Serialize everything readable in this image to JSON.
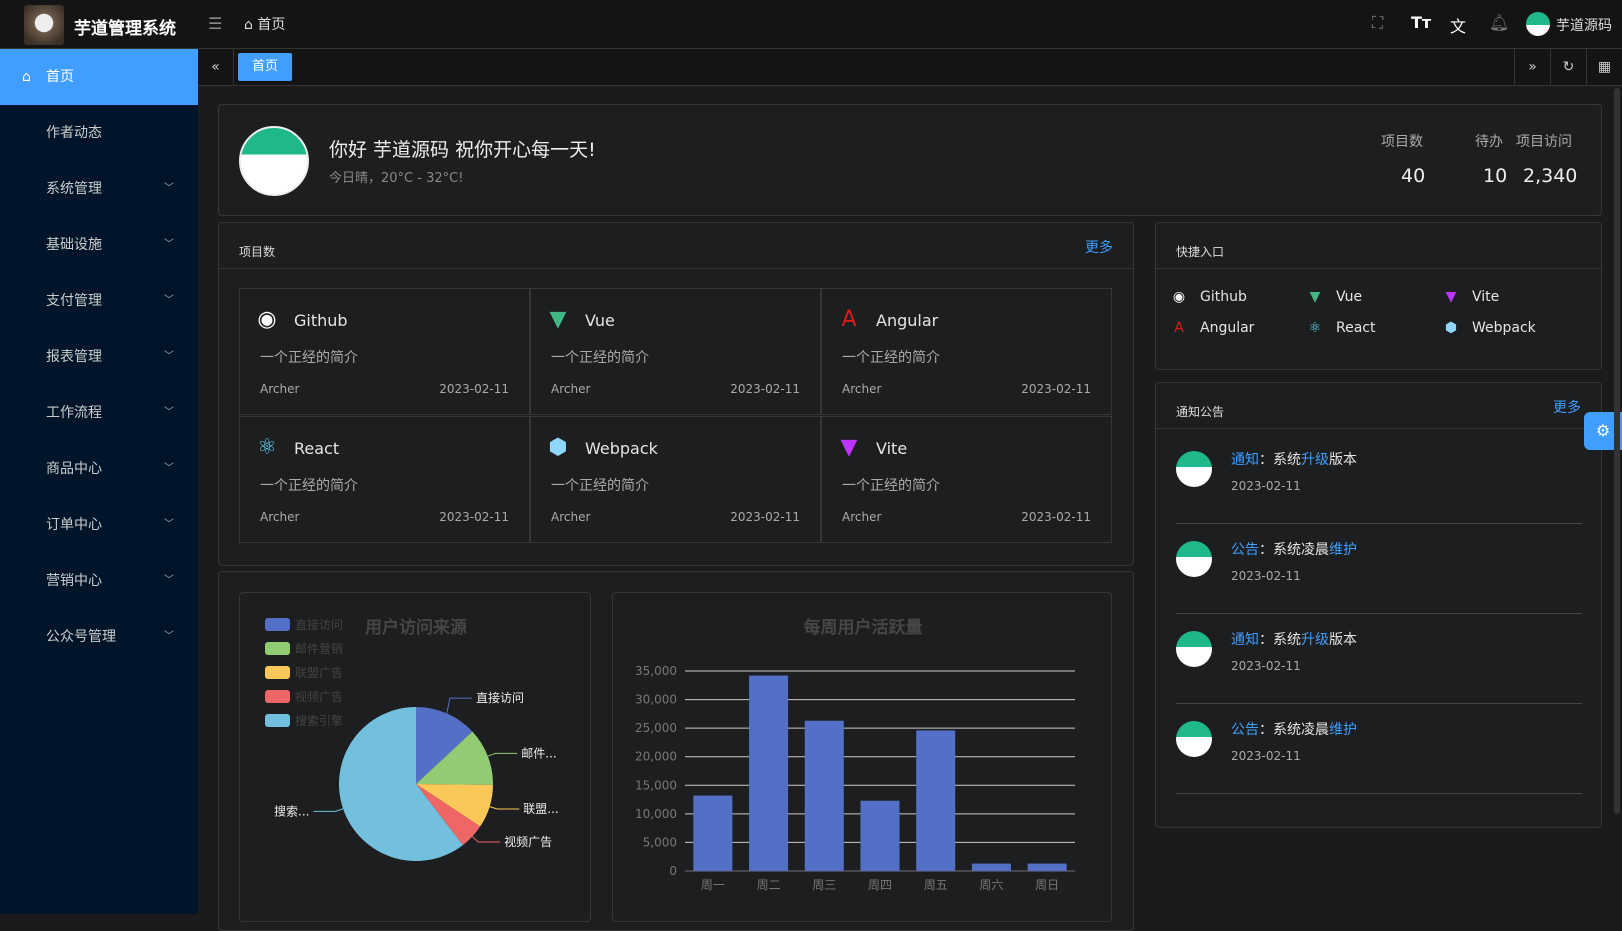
{
  "header": {
    "app_title": "芋道管理系统",
    "breadcrumb": "首页",
    "username": "芋道源码",
    "icons": [
      "fullscreen-icon",
      "font-size-icon",
      "translate-icon",
      "bell-icon"
    ]
  },
  "sidebar": {
    "items": [
      {
        "label": "首页",
        "active": true
      },
      {
        "label": "作者动态"
      },
      {
        "label": "系统管理"
      },
      {
        "label": "基础设施"
      },
      {
        "label": "支付管理"
      },
      {
        "label": "报表管理"
      },
      {
        "label": "工作流程"
      },
      {
        "label": "商品中心"
      },
      {
        "label": "订单中心"
      },
      {
        "label": "营销中心"
      },
      {
        "label": "公众号管理"
      }
    ]
  },
  "tabs": [
    {
      "label": "首页",
      "active": true
    }
  ],
  "welcome": {
    "greeting": "你好 芋道源码 祝你开心每一天!",
    "weather": "今日晴，20°C - 32°C!",
    "stats": [
      {
        "label": "项目数",
        "value": "40"
      },
      {
        "label": "待办",
        "value": "10"
      },
      {
        "label": "项目访问",
        "value": "2,340"
      }
    ]
  },
  "projects": {
    "title": "项目数",
    "more": "更多",
    "items": [
      {
        "name": "Github",
        "icon": "github-icon",
        "desc": "一个正经的简介",
        "author": "Archer",
        "date": "2023-02-11"
      },
      {
        "name": "Vue",
        "icon": "vue-icon",
        "desc": "一个正经的简介",
        "author": "Archer",
        "date": "2023-02-11"
      },
      {
        "name": "Angular",
        "icon": "angular-icon",
        "desc": "一个正经的简介",
        "author": "Archer",
        "date": "2023-02-11"
      },
      {
        "name": "React",
        "icon": "react-icon",
        "desc": "一个正经的简介",
        "author": "Archer",
        "date": "2023-02-11"
      },
      {
        "name": "Webpack",
        "icon": "webpack-icon",
        "desc": "一个正经的简介",
        "author": "Archer",
        "date": "2023-02-11"
      },
      {
        "name": "Vite",
        "icon": "vite-icon",
        "desc": "一个正经的简介",
        "author": "Archer",
        "date": "2023-02-11"
      }
    ]
  },
  "shortcuts": {
    "title": "快捷入口",
    "items": [
      "Github",
      "Vue",
      "Vite",
      "Angular",
      "React",
      "Webpack"
    ]
  },
  "notices": {
    "title": "通知公告",
    "more": "更多",
    "items": [
      {
        "type": "通知",
        "pre": "：系统",
        "hl": "升级",
        "post": "版本",
        "date": "2023-02-11"
      },
      {
        "type": "公告",
        "pre": "：系统凌晨",
        "hl": "维护",
        "post": "",
        "date": "2023-02-11"
      },
      {
        "type": "通知",
        "pre": "：系统",
        "hl": "升级",
        "post": "版本",
        "date": "2023-02-11"
      },
      {
        "type": "公告",
        "pre": "：系统凌晨",
        "hl": "维护",
        "post": "",
        "date": "2023-02-11"
      }
    ]
  },
  "chart_data": [
    {
      "type": "pie",
      "title": "用户访问来源",
      "legend": "top-left",
      "categories": [
        "直接访问",
        "邮件营销",
        "联盟广告",
        "视频广告",
        "搜索引擎"
      ],
      "labels": [
        "直接访问",
        "邮件...",
        "联盟...",
        "视频广告",
        "搜索..."
      ],
      "values": [
        335,
        310,
        234,
        135,
        1548
      ],
      "colors": [
        "#5470c6",
        "#91cc75",
        "#fac858",
        "#ee6666",
        "#73c0de"
      ]
    },
    {
      "type": "bar",
      "title": "每周用户活跃量",
      "categories": [
        "周一",
        "周二",
        "周三",
        "周四",
        "周五",
        "周六",
        "周日"
      ],
      "values": [
        13200,
        34200,
        26300,
        12300,
        24600,
        1300,
        1300
      ],
      "ylim": [
        0,
        35000
      ],
      "yticks": [
        "0",
        "5,000",
        "10,000",
        "15,000",
        "20,000",
        "25,000",
        "30,000",
        "35,000"
      ],
      "grid": true,
      "color": "#5470c6"
    }
  ]
}
